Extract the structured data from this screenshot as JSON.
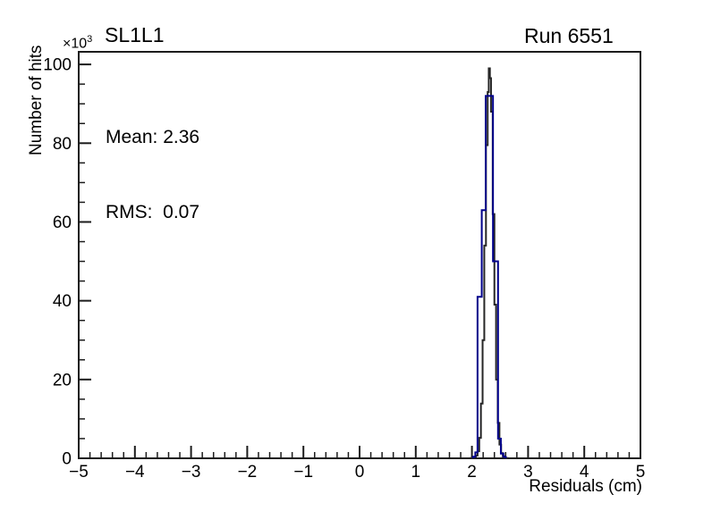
{
  "page": {
    "background": "#ffffff"
  },
  "header": {
    "title": "SL1L1",
    "run_label": "Run 6551"
  },
  "stats_box": {
    "mean_line": "Mean: 2.36",
    "rms_line": "RMS:  0.07"
  },
  "axes": {
    "x_label": "Residuals (cm)",
    "y_label": "Number of hits",
    "y_multiplier_base": "×10",
    "y_multiplier_exp": "3"
  },
  "colors": {
    "axis": "#1c1c1c",
    "text": "#000000",
    "fit_histogram": "#262626",
    "main_histogram": "#00008b",
    "background": "#ffffff"
  },
  "chart_data": {
    "type": "line",
    "subtype": "step-histogram",
    "title": "SL1L1",
    "annotation": "Run 6551",
    "xlabel": "Residuals (cm)",
    "ylabel": "Number of hits",
    "y_unit_multiplier": "×10³",
    "xlim": [
      -5,
      5
    ],
    "ylim": [
      0,
      103.2
    ],
    "x_major_ticks": [
      -5,
      -4,
      -3,
      -2,
      -1,
      0,
      1,
      2,
      3,
      4,
      5
    ],
    "x_minor_step": 0.2,
    "y_major_ticks": [
      0,
      20,
      40,
      60,
      80,
      100
    ],
    "y_minor_step": 5,
    "grid": false,
    "legend": "none",
    "stats": {
      "mean": 2.36,
      "rms": 0.07
    },
    "series": [
      {
        "name": "fit-histogram",
        "color": "#262626",
        "line_width": 2,
        "steps": [
          [
            1.98,
            0.05
          ],
          [
            2.01,
            0.15
          ],
          [
            2.04,
            0.3
          ],
          [
            2.07,
            0.7
          ],
          [
            2.1,
            1.8
          ],
          [
            2.13,
            5.2
          ],
          [
            2.16,
            13.9
          ],
          [
            2.19,
            30
          ],
          [
            2.22,
            54
          ],
          [
            2.25,
            79.5
          ],
          [
            2.28,
            93
          ],
          [
            2.3,
            99
          ],
          [
            2.32,
            96.5
          ],
          [
            2.34,
            88
          ],
          [
            2.37,
            62
          ],
          [
            2.4,
            39
          ],
          [
            2.43,
            20
          ],
          [
            2.46,
            9
          ],
          [
            2.49,
            3.5
          ],
          [
            2.52,
            1.3
          ],
          [
            2.55,
            0.5
          ],
          [
            2.58,
            0.15
          ],
          [
            2.61,
            0.05
          ],
          [
            2.64,
            0
          ]
        ]
      },
      {
        "name": "residuals-histogram",
        "color": "#00008b",
        "line_width": 2,
        "steps": [
          [
            2.02,
            0.4
          ],
          [
            2.06,
            1.5
          ],
          [
            2.1,
            41
          ],
          [
            2.175,
            63
          ],
          [
            2.245,
            92
          ],
          [
            2.375,
            50
          ],
          [
            2.465,
            5
          ],
          [
            2.515,
            1.2
          ],
          [
            2.56,
            0.4
          ],
          [
            2.6,
            0
          ]
        ]
      }
    ]
  }
}
